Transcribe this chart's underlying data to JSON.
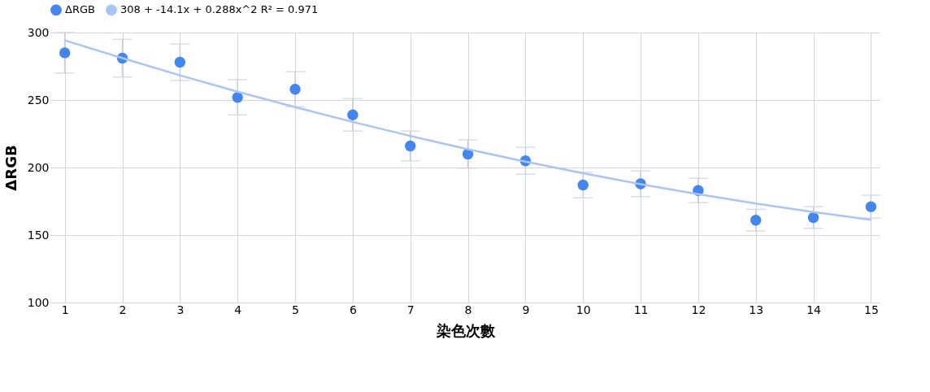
{
  "chart_data": {
    "type": "scatter",
    "xlabel": "染色次數",
    "ylabel": "ΔRGB",
    "x": [
      1,
      2,
      3,
      4,
      5,
      6,
      7,
      8,
      9,
      10,
      11,
      12,
      13,
      14,
      15
    ],
    "series": [
      {
        "name": "ΔRGB",
        "color": "#4285f4",
        "values": [
          285,
          281,
          278,
          252,
          258,
          239,
          216,
          210,
          205,
          187,
          188,
          183,
          161,
          163,
          171
        ],
        "errors": [
          15,
          14,
          13.5,
          13,
          13,
          12,
          11,
          10.5,
          10,
          9.5,
          9.5,
          9,
          8,
          8,
          8.5
        ]
      },
      {
        "name": "308 + -14.1x + 0.288x^2 R² = 0.971",
        "type": "line",
        "marker": "none",
        "color": "#a8c5f7",
        "x": [
          1,
          2,
          3,
          4,
          5,
          6,
          7,
          8,
          9,
          10,
          11,
          12,
          13,
          14,
          15
        ],
        "values": [
          294.2,
          281.0,
          268.3,
          256.2,
          244.7,
          233.8,
          223.4,
          213.6,
          204.4,
          195.8,
          187.7,
          180.3,
          173.4,
          167.0,
          161.3
        ]
      }
    ],
    "xlim": [
      0.75,
      15.15
    ],
    "xticks": [
      1,
      2,
      3,
      4,
      5,
      6,
      7,
      8,
      9,
      10,
      11,
      12,
      13,
      14,
      15
    ],
    "ylim": [
      100,
      300
    ],
    "yticks": [
      100,
      150,
      200,
      250,
      300
    ],
    "grid": true,
    "legend": "top",
    "marker": "circle",
    "line_style": "solid"
  }
}
